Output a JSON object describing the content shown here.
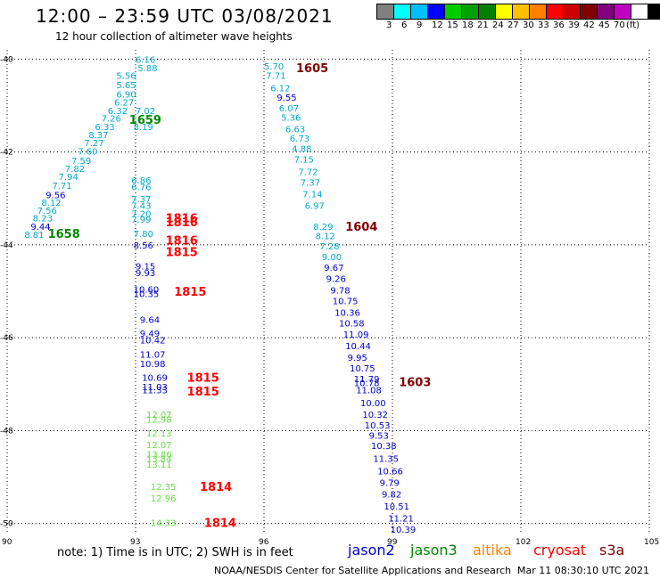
{
  "header": {
    "title": "12:00 – 23:59 UTC 03/08/2021",
    "subtitle": "12 hour collection of altimeter wave heights"
  },
  "scale": {
    "colors": [
      "#808080",
      "#00ffff",
      "#00bfff",
      "#0000ff",
      "#00cc00",
      "#00a000",
      "#008000",
      "#ffff00",
      "#ffc000",
      "#ff8000",
      "#ff0000",
      "#cc0000",
      "#800000",
      "#800080",
      "#c000c0",
      "#ffffff",
      "#000000"
    ],
    "labels": [
      "3",
      "6",
      "9",
      "12",
      "15",
      "18",
      "21",
      "24",
      "27",
      "30",
      "33",
      "36",
      "39",
      "42",
      "45",
      "70"
    ],
    "unit": "(ft)"
  },
  "axes": {
    "x_ticks": [
      "90",
      "93",
      "96",
      "99",
      "102",
      "105"
    ],
    "y_ticks": [
      "-40",
      "-42",
      "-44",
      "-46",
      "-48",
      "-50"
    ]
  },
  "chart_data": {
    "type": "scatter",
    "xlim": [
      90,
      105
    ],
    "ylim": [
      -50.2,
      -39.8
    ],
    "grid": "dotted",
    "series": [
      {
        "name": "jason2",
        "color": "#0000cc"
      },
      {
        "name": "jason3",
        "color": "#008800"
      },
      {
        "name": "altika",
        "color": "#ff8000"
      },
      {
        "name": "cryosat",
        "color": "#ff0000"
      },
      {
        "name": "s3a",
        "color": "#800000"
      }
    ],
    "observations": [
      {
        "lon": 90.4,
        "lat": -43.77,
        "text": "8.81",
        "color": "#00aacc"
      },
      {
        "lon": 90.55,
        "lat": -43.6,
        "text": "9.44",
        "color": "#0000cc"
      },
      {
        "lon": 90.6,
        "lat": -43.42,
        "text": "8.23",
        "color": "#00aacc"
      },
      {
        "lon": 90.7,
        "lat": -43.25,
        "text": "7.56",
        "color": "#00aacc"
      },
      {
        "lon": 90.8,
        "lat": -43.08,
        "text": "8.12",
        "color": "#00aacc"
      },
      {
        "lon": 90.9,
        "lat": -42.92,
        "text": "9.56",
        "color": "#0000cc"
      },
      {
        "lon": 91.05,
        "lat": -42.72,
        "text": "7.71",
        "color": "#00aacc"
      },
      {
        "lon": 91.2,
        "lat": -42.52,
        "text": "7.94",
        "color": "#00aacc"
      },
      {
        "lon": 91.35,
        "lat": -42.35,
        "text": "7.82",
        "color": "#00aacc"
      },
      {
        "lon": 91.5,
        "lat": -42.18,
        "text": "7.59",
        "color": "#00aacc"
      },
      {
        "lon": 91.65,
        "lat": -41.98,
        "text": "7.60",
        "color": "#00aacc"
      },
      {
        "lon": 91.8,
        "lat": -41.8,
        "text": "7.27",
        "color": "#00aacc"
      },
      {
        "lon": 91.9,
        "lat": -41.62,
        "text": "8.37",
        "color": "#00aacc"
      },
      {
        "lon": 92.05,
        "lat": -41.45,
        "text": "6.33",
        "color": "#00aacc"
      },
      {
        "lon": 92.2,
        "lat": -41.27,
        "text": "7.26",
        "color": "#00aacc"
      },
      {
        "lon": 92.35,
        "lat": -41.1,
        "text": "6.32",
        "color": "#00aacc"
      },
      {
        "lon": 92.5,
        "lat": -40.92,
        "text": "6.27",
        "color": "#00aacc"
      },
      {
        "lon": 92.55,
        "lat": -40.75,
        "text": "6.90",
        "color": "#00aacc"
      },
      {
        "lon": 92.55,
        "lat": -40.55,
        "text": "5.65",
        "color": "#00aacc"
      },
      {
        "lon": 92.55,
        "lat": -40.35,
        "text": "5.56",
        "color": "#00aacc"
      },
      {
        "lon": 93.05,
        "lat": -40.18,
        "text": "5.88",
        "color": "#00aacc"
      },
      {
        "lon": 93.0,
        "lat": -40.0,
        "text": "6.16",
        "color": "#00aacc"
      },
      {
        "lon": 93.0,
        "lat": -41.1,
        "text": "7.02",
        "color": "#00aacc"
      },
      {
        "lon": 92.95,
        "lat": -41.45,
        "text": "8.19",
        "color": "#00aacc"
      },
      {
        "lon": 92.9,
        "lat": -42.75,
        "text": "6.76",
        "color": "#00aacc"
      },
      {
        "lon": 92.9,
        "lat": -42.6,
        "text": "6.86",
        "color": "#00aacc"
      },
      {
        "lon": 92.9,
        "lat": -43.0,
        "text": "7.37",
        "color": "#00aacc"
      },
      {
        "lon": 92.9,
        "lat": -43.15,
        "text": "7.43",
        "color": "#00aacc"
      },
      {
        "lon": 92.9,
        "lat": -43.32,
        "text": "7.20",
        "color": "#00aacc"
      },
      {
        "lon": 92.9,
        "lat": -43.45,
        "text": "7.99",
        "color": "#00aacc"
      },
      {
        "lon": 92.95,
        "lat": -43.75,
        "text": "7.80",
        "color": "#00aacc"
      },
      {
        "lon": 92.95,
        "lat": -44.0,
        "text": "8.56",
        "color": "#0000cc"
      },
      {
        "lon": 93.0,
        "lat": -44.45,
        "text": "9.15",
        "color": "#0000cc"
      },
      {
        "lon": 93.0,
        "lat": -44.6,
        "text": "9.93",
        "color": "#0000cc"
      },
      {
        "lon": 92.95,
        "lat": -44.95,
        "text": "10.60",
        "color": "#0000cc"
      },
      {
        "lon": 92.95,
        "lat": -45.05,
        "text": "10.35",
        "color": "#0000cc"
      },
      {
        "lon": 93.1,
        "lat": -45.6,
        "text": "9.64",
        "color": "#0000cc"
      },
      {
        "lon": 93.1,
        "lat": -45.9,
        "text": "9.49",
        "color": "#0000cc"
      },
      {
        "lon": 93.1,
        "lat": -46.05,
        "text": "10.42",
        "color": "#0000cc"
      },
      {
        "lon": 93.1,
        "lat": -46.35,
        "text": "11.07",
        "color": "#0000cc"
      },
      {
        "lon": 93.1,
        "lat": -46.55,
        "text": "10.98",
        "color": "#0000cc"
      },
      {
        "lon": 93.15,
        "lat": -46.85,
        "text": "10.69",
        "color": "#0000cc"
      },
      {
        "lon": 93.15,
        "lat": -47.05,
        "text": "11.03",
        "color": "#0000cc"
      },
      {
        "lon": 93.15,
        "lat": -47.12,
        "text": "11.33",
        "color": "#0000cc"
      },
      {
        "lon": 93.25,
        "lat": -47.65,
        "text": "12.07",
        "color": "#66dd44"
      },
      {
        "lon": 93.25,
        "lat": -47.75,
        "text": "12.98",
        "color": "#66dd44"
      },
      {
        "lon": 93.25,
        "lat": -48.05,
        "text": "12.13",
        "color": "#66dd44"
      },
      {
        "lon": 93.25,
        "lat": -48.3,
        "text": "12.07",
        "color": "#66dd44"
      },
      {
        "lon": 93.25,
        "lat": -48.5,
        "text": "13.86",
        "color": "#66dd44"
      },
      {
        "lon": 93.25,
        "lat": -48.6,
        "text": "13.84",
        "color": "#66dd44"
      },
      {
        "lon": 93.25,
        "lat": -48.72,
        "text": "13.11",
        "color": "#66dd44"
      },
      {
        "lon": 93.35,
        "lat": -49.2,
        "text": "12.35",
        "color": "#66dd44"
      },
      {
        "lon": 93.35,
        "lat": -49.45,
        "text": "12.96",
        "color": "#66dd44"
      },
      {
        "lon": 93.35,
        "lat": -49.98,
        "text": "14.33",
        "color": "#66dd44"
      },
      {
        "lon": 96.0,
        "lat": -40.15,
        "text": "5.70",
        "color": "#00aacc"
      },
      {
        "lon": 96.05,
        "lat": -40.35,
        "text": "7.71",
        "color": "#00aacc"
      },
      {
        "lon": 96.15,
        "lat": -40.62,
        "text": "6.12",
        "color": "#00aacc"
      },
      {
        "lon": 96.3,
        "lat": -40.82,
        "text": "9.55",
        "color": "#0000cc"
      },
      {
        "lon": 96.35,
        "lat": -41.05,
        "text": "6.07",
        "color": "#00aacc"
      },
      {
        "lon": 96.4,
        "lat": -41.25,
        "text": "5.36",
        "color": "#00aacc"
      },
      {
        "lon": 96.5,
        "lat": -41.5,
        "text": "6.63",
        "color": "#00aacc"
      },
      {
        "lon": 96.6,
        "lat": -41.7,
        "text": "6.73",
        "color": "#00aacc"
      },
      {
        "lon": 96.65,
        "lat": -41.92,
        "text": "4.88",
        "color": "#00aacc"
      },
      {
        "lon": 96.7,
        "lat": -42.15,
        "text": "7.15",
        "color": "#00aacc"
      },
      {
        "lon": 96.8,
        "lat": -42.42,
        "text": "7.72",
        "color": "#00aacc"
      },
      {
        "lon": 96.85,
        "lat": -42.65,
        "text": "7.37",
        "color": "#00aacc"
      },
      {
        "lon": 96.9,
        "lat": -42.9,
        "text": "7.14",
        "color": "#00aacc"
      },
      {
        "lon": 96.95,
        "lat": -43.15,
        "text": "6.97",
        "color": "#00aacc"
      },
      {
        "lon": 97.15,
        "lat": -43.6,
        "text": "8.29",
        "color": "#00aacc"
      },
      {
        "lon": 97.2,
        "lat": -43.8,
        "text": "8.12",
        "color": "#00aacc"
      },
      {
        "lon": 97.3,
        "lat": -44.02,
        "text": "7.28",
        "color": "#00aacc"
      },
      {
        "lon": 97.35,
        "lat": -44.25,
        "text": "9.00",
        "color": "#00aacc"
      },
      {
        "lon": 97.4,
        "lat": -44.48,
        "text": "9.67",
        "color": "#0000cc"
      },
      {
        "lon": 97.45,
        "lat": -44.72,
        "text": "9.26",
        "color": "#0000cc"
      },
      {
        "lon": 97.55,
        "lat": -44.97,
        "text": "9.78",
        "color": "#0000cc"
      },
      {
        "lon": 97.6,
        "lat": -45.2,
        "text": "10.75",
        "color": "#0000cc"
      },
      {
        "lon": 97.65,
        "lat": -45.45,
        "text": "10.36",
        "color": "#0000cc"
      },
      {
        "lon": 97.75,
        "lat": -45.68,
        "text": "10.58",
        "color": "#0000cc"
      },
      {
        "lon": 97.85,
        "lat": -45.92,
        "text": "11.09",
        "color": "#0000cc"
      },
      {
        "lon": 97.9,
        "lat": -46.17,
        "text": "10.44",
        "color": "#0000cc"
      },
      {
        "lon": 97.95,
        "lat": -46.42,
        "text": "9.95",
        "color": "#0000cc"
      },
      {
        "lon": 98.0,
        "lat": -46.65,
        "text": "10.75",
        "color": "#0000cc"
      },
      {
        "lon": 98.1,
        "lat": -46.88,
        "text": "11.79",
        "color": "#0000cc"
      },
      {
        "lon": 98.1,
        "lat": -46.97,
        "text": "10.78",
        "color": "#0000cc"
      },
      {
        "lon": 98.15,
        "lat": -47.12,
        "text": "11.08",
        "color": "#0000cc"
      },
      {
        "lon": 98.25,
        "lat": -47.4,
        "text": "10.00",
        "color": "#0000cc"
      },
      {
        "lon": 98.3,
        "lat": -47.65,
        "text": "10.32",
        "color": "#0000cc"
      },
      {
        "lon": 98.35,
        "lat": -47.88,
        "text": "10.53",
        "color": "#0000cc"
      },
      {
        "lon": 98.45,
        "lat": -48.1,
        "text": "9.53",
        "color": "#0000cc"
      },
      {
        "lon": 98.5,
        "lat": -48.32,
        "text": "10.38",
        "color": "#0000cc"
      },
      {
        "lon": 98.55,
        "lat": -48.6,
        "text": "11.35",
        "color": "#0000cc"
      },
      {
        "lon": 98.65,
        "lat": -48.87,
        "text": "10.66",
        "color": "#0000cc"
      },
      {
        "lon": 98.7,
        "lat": -49.12,
        "text": "9.79",
        "color": "#0000cc"
      },
      {
        "lon": 98.75,
        "lat": -49.37,
        "text": "9.82",
        "color": "#0000cc"
      },
      {
        "lon": 98.8,
        "lat": -49.62,
        "text": "10.51",
        "color": "#0000cc"
      },
      {
        "lon": 98.9,
        "lat": -49.88,
        "text": "11.21",
        "color": "#0000cc"
      },
      {
        "lon": 98.95,
        "lat": -50.12,
        "text": "10.39",
        "color": "#0000cc"
      }
    ],
    "time_labels": [
      {
        "lon": 90.95,
        "lat": -43.75,
        "text": "1658",
        "color": "#008800"
      },
      {
        "lon": 92.85,
        "lat": -41.3,
        "text": "1659",
        "color": "#008800"
      },
      {
        "lon": 93.7,
        "lat": -43.42,
        "text": "1816",
        "color": "#ff0000"
      },
      {
        "lon": 93.7,
        "lat": -43.5,
        "text": "1816",
        "color": "#ff0000"
      },
      {
        "lon": 93.7,
        "lat": -43.9,
        "text": "1816",
        "color": "#ff0000"
      },
      {
        "lon": 93.7,
        "lat": -44.15,
        "text": "1815",
        "color": "#ff0000"
      },
      {
        "lon": 93.9,
        "lat": -45.0,
        "text": "1815",
        "color": "#ff0000"
      },
      {
        "lon": 94.2,
        "lat": -46.85,
        "text": "1815",
        "color": "#ff0000"
      },
      {
        "lon": 94.2,
        "lat": -47.15,
        "text": "1815",
        "color": "#ff0000"
      },
      {
        "lon": 94.5,
        "lat": -49.2,
        "text": "1814",
        "color": "#ff0000"
      },
      {
        "lon": 94.6,
        "lat": -49.98,
        "text": "1814",
        "color": "#ff0000"
      },
      {
        "lon": 96.75,
        "lat": -40.18,
        "text": "1605",
        "color": "#800000"
      },
      {
        "lon": 97.9,
        "lat": -43.6,
        "text": "1604",
        "color": "#800000"
      },
      {
        "lon": 99.15,
        "lat": -46.95,
        "text": "1603",
        "color": "#800000"
      }
    ]
  },
  "footer": {
    "note": "note: 1) Time is in UTC; 2) SWH is in feet",
    "legend": [
      {
        "label": "jason2",
        "color": "#0000cc"
      },
      {
        "label": "jason3",
        "color": "#008800"
      },
      {
        "label": "altika",
        "color": "#ff8000"
      },
      {
        "label": "cryosat",
        "color": "#ff0000"
      },
      {
        "label": "s3a",
        "color": "#800000"
      }
    ],
    "credit": "NOAA/NESDIS Center for Satellite Applications and Research",
    "timestamp": "Mar 11 08:30:10 UTC 2021"
  }
}
